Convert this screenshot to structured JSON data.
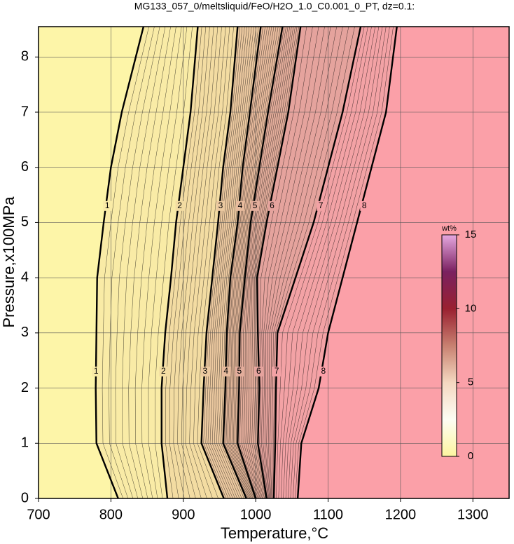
{
  "chart_data": {
    "type": "contour",
    "title": "MG133_057_0/meltsliquid/FeO/H2O_1.0_C0.001_0_PT, dz=0.1:",
    "x_label": "Temperature,°C",
    "y_label": "Pressure,x100MPa",
    "xlim": [
      700,
      1350
    ],
    "ylim": [
      0,
      8.55
    ],
    "xticks": [
      700,
      800,
      900,
      1000,
      1100,
      1200,
      1300
    ],
    "yticks": [
      0,
      1,
      2,
      3,
      4,
      5,
      6,
      7,
      8
    ],
    "grid": true,
    "y": [
      0,
      1,
      2,
      3,
      4,
      5,
      6,
      7,
      8.55
    ],
    "contours": [
      {
        "level": 1,
        "x": [
          810,
          780,
          779,
          780,
          781,
          790,
          800,
          815,
          845
        ]
      },
      {
        "level": 2,
        "x": [
          878,
          870,
          870,
          875,
          883,
          890,
          900,
          910,
          920
        ]
      },
      {
        "level": 3,
        "x": [
          956,
          925,
          928,
          932,
          940,
          948,
          955,
          965,
          975
        ]
      },
      {
        "level": 4,
        "x": [
          987,
          955,
          958,
          960,
          965,
          975,
          982,
          992,
          1007
        ]
      },
      {
        "level": 5,
        "x": [
          1000,
          975,
          977,
          978,
          985,
          993,
          1005,
          1017,
          1037
        ]
      },
      {
        "level": 6,
        "x": [
          1015,
          1003,
          1005,
          1003,
          1002,
          1015,
          1030,
          1045,
          1062
        ]
      },
      {
        "level": 7,
        "x": [
          1025,
          1027,
          1028,
          1030,
          1055,
          1080,
          1100,
          1120,
          1145
        ]
      },
      {
        "level": 8,
        "x": [
          1058,
          1063,
          1087,
          1100,
          1120,
          1140,
          1160,
          1180,
          1195
        ]
      }
    ],
    "band_colors": [
      "#fdf5a8",
      "#f9eba6",
      "#f3dca2",
      "#ecc9a0",
      "#e8bb9d",
      "#e3ad9b",
      "#e5a39d",
      "#f3a2a5",
      "#fba0a8"
    ],
    "colorbar": {
      "label": "wt%",
      "lim": [
        0,
        15
      ],
      "ticks": [
        0,
        5,
        10,
        15
      ],
      "colors": [
        "#fdf5a0",
        "#fdfdf4",
        "#f4d8c0",
        "#c88070",
        "#9a2030",
        "#7a2060",
        "#e6a8e0"
      ]
    }
  }
}
